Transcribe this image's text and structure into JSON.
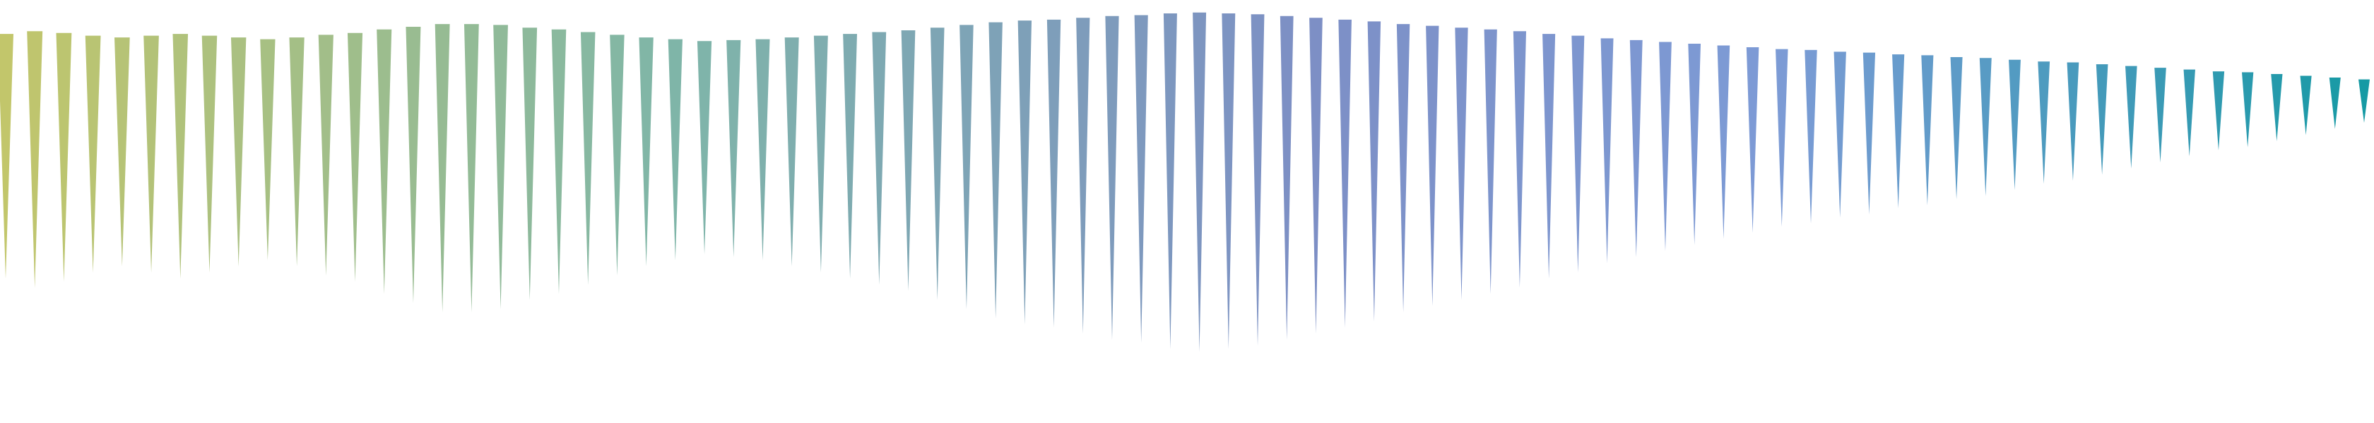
{
  "graphic": {
    "background_color": "#ffffff",
    "count": 82,
    "spike_lengths": [
      0.62,
      0.65,
      0.63,
      0.6,
      0.58,
      0.6,
      0.62,
      0.6,
      0.58,
      0.56,
      0.58,
      0.61,
      0.63,
      0.67,
      0.7,
      0.73,
      0.73,
      0.72,
      0.69,
      0.67,
      0.64,
      0.61,
      0.58,
      0.56,
      0.54,
      0.55,
      0.56,
      0.58,
      0.6,
      0.62,
      0.64,
      0.66,
      0.69,
      0.72,
      0.75,
      0.77,
      0.78,
      0.8,
      0.82,
      0.83,
      0.85,
      0.86,
      0.85,
      0.84,
      0.82,
      0.8,
      0.78,
      0.76,
      0.73,
      0.71,
      0.69,
      0.67,
      0.65,
      0.62,
      0.6,
      0.57,
      0.55,
      0.53,
      0.51,
      0.49,
      0.47,
      0.45,
      0.44,
      0.42,
      0.41,
      0.39,
      0.38,
      0.36,
      0.35,
      0.33,
      0.31,
      0.3,
      0.28,
      0.26,
      0.24,
      0.22,
      0.2,
      0.19,
      0.17,
      0.15,
      0.13,
      0.11
    ],
    "color_stops": [
      {
        "at": 0.0,
        "color": "#c2c66b"
      },
      {
        "at": 0.28,
        "color": "#7fb6a8"
      },
      {
        "at": 0.55,
        "color": "#7d8fc5"
      },
      {
        "at": 0.75,
        "color": "#7d9bd6"
      },
      {
        "at": 1.0,
        "color": "#169aa4"
      }
    ]
  }
}
